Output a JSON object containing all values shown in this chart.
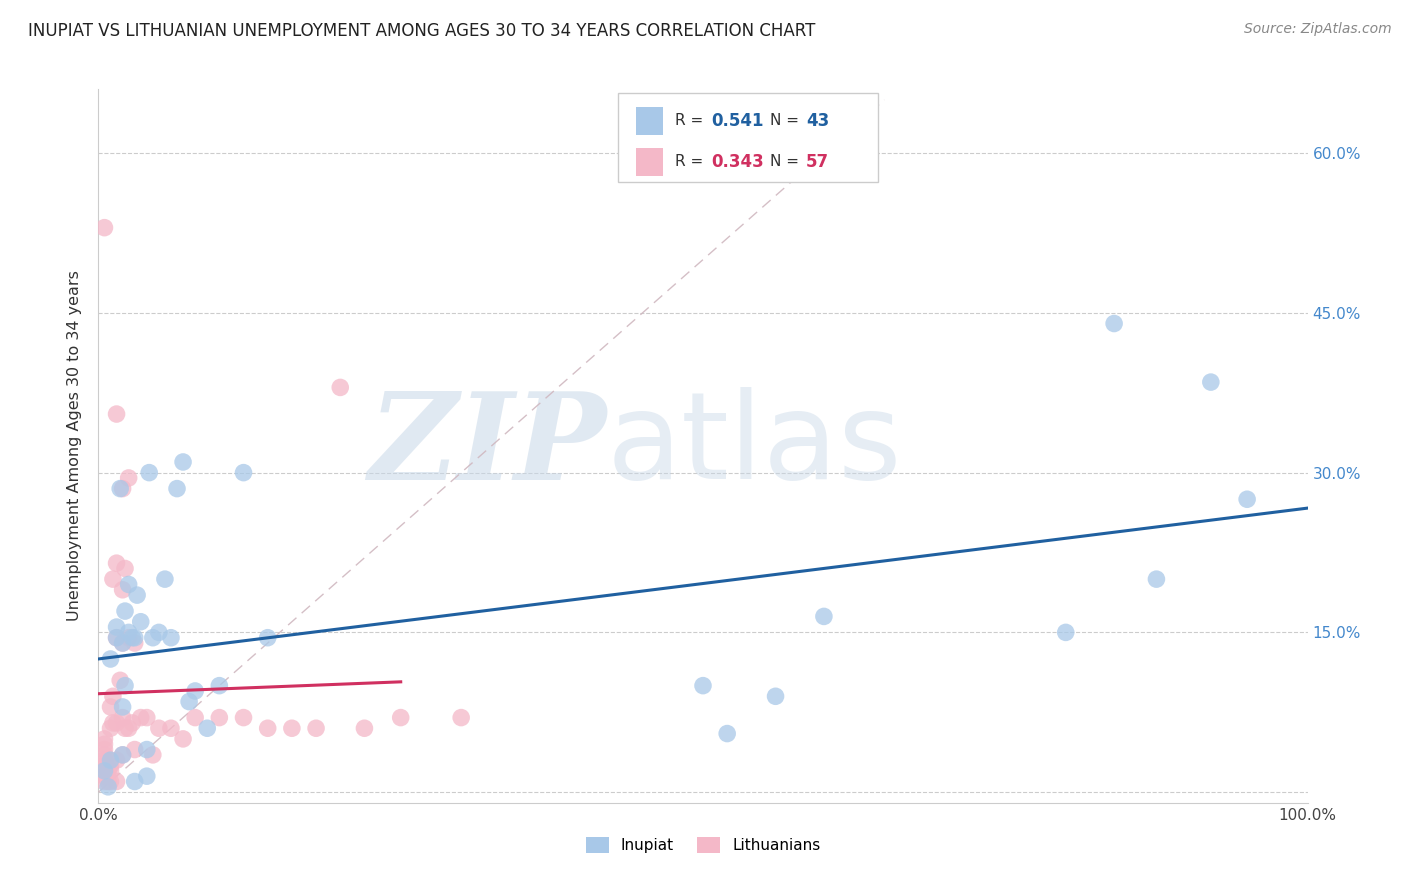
{
  "title": "INUPIAT VS LITHUANIAN UNEMPLOYMENT AMONG AGES 30 TO 34 YEARS CORRELATION CHART",
  "source": "Source: ZipAtlas.com",
  "ylabel": "Unemployment Among Ages 30 to 34 years",
  "xlim": [
    0.0,
    1.0
  ],
  "ylim": [
    -0.01,
    0.66
  ],
  "xticks": [
    0.0,
    0.125,
    0.25,
    0.375,
    0.5,
    0.625,
    0.75,
    0.875,
    1.0
  ],
  "xticklabels": [
    "0.0%",
    "",
    "",
    "",
    "",
    "",
    "",
    "",
    "100.0%"
  ],
  "yticks": [
    0.0,
    0.15,
    0.3,
    0.45,
    0.6
  ],
  "yticklabels": [
    "",
    "15.0%",
    "30.0%",
    "45.0%",
    "60.0%"
  ],
  "inupiat_color": "#a8c8e8",
  "lithuanian_color": "#f4b8c8",
  "inupiat_line_color": "#2060a0",
  "lithuanian_line_color": "#d03060",
  "bg_color": "#ffffff",
  "watermark_zip": "ZIP",
  "watermark_atlas": "atlas",
  "inupiat_x": [
    0.005,
    0.008,
    0.01,
    0.01,
    0.015,
    0.015,
    0.018,
    0.02,
    0.02,
    0.02,
    0.022,
    0.022,
    0.025,
    0.025,
    0.028,
    0.03,
    0.03,
    0.032,
    0.035,
    0.04,
    0.04,
    0.042,
    0.045,
    0.05,
    0.055,
    0.06,
    0.065,
    0.07,
    0.075,
    0.08,
    0.09,
    0.1,
    0.12,
    0.14,
    0.5,
    0.52,
    0.56,
    0.6,
    0.8,
    0.84,
    0.875,
    0.92,
    0.95
  ],
  "inupiat_y": [
    0.02,
    0.005,
    0.03,
    0.125,
    0.145,
    0.155,
    0.285,
    0.035,
    0.08,
    0.14,
    0.1,
    0.17,
    0.15,
    0.195,
    0.145,
    0.01,
    0.145,
    0.185,
    0.16,
    0.015,
    0.04,
    0.3,
    0.145,
    0.15,
    0.2,
    0.145,
    0.285,
    0.31,
    0.085,
    0.095,
    0.06,
    0.1,
    0.3,
    0.145,
    0.1,
    0.055,
    0.09,
    0.165,
    0.15,
    0.44,
    0.2,
    0.385,
    0.275
  ],
  "lithuanian_x": [
    0.005,
    0.005,
    0.005,
    0.005,
    0.005,
    0.005,
    0.005,
    0.005,
    0.005,
    0.005,
    0.008,
    0.008,
    0.008,
    0.01,
    0.01,
    0.01,
    0.01,
    0.01,
    0.012,
    0.012,
    0.012,
    0.015,
    0.015,
    0.015,
    0.015,
    0.015,
    0.015,
    0.018,
    0.02,
    0.02,
    0.02,
    0.02,
    0.02,
    0.022,
    0.022,
    0.025,
    0.025,
    0.025,
    0.028,
    0.03,
    0.03,
    0.035,
    0.04,
    0.045,
    0.05,
    0.06,
    0.07,
    0.08,
    0.1,
    0.12,
    0.14,
    0.16,
    0.18,
    0.2,
    0.22,
    0.25,
    0.3
  ],
  "lithuanian_y": [
    0.01,
    0.015,
    0.02,
    0.025,
    0.03,
    0.035,
    0.04,
    0.045,
    0.05,
    0.53,
    0.01,
    0.02,
    0.03,
    0.01,
    0.02,
    0.025,
    0.06,
    0.08,
    0.065,
    0.09,
    0.2,
    0.01,
    0.03,
    0.065,
    0.145,
    0.215,
    0.355,
    0.105,
    0.035,
    0.07,
    0.14,
    0.19,
    0.285,
    0.06,
    0.21,
    0.06,
    0.145,
    0.295,
    0.065,
    0.04,
    0.14,
    0.07,
    0.07,
    0.035,
    0.06,
    0.06,
    0.05,
    0.07,
    0.07,
    0.07,
    0.06,
    0.06,
    0.06,
    0.38,
    0.06,
    0.07,
    0.07
  ]
}
